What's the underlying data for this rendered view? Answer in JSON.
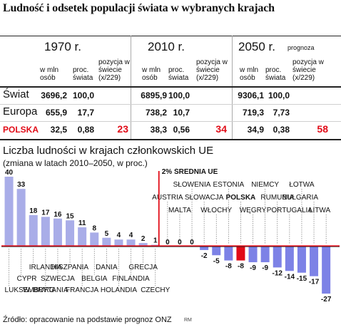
{
  "title": "Ludność i odsetek populacji świata w wybranych krajach",
  "table": {
    "years": [
      "1970 r.",
      "2010 r.",
      "2050 r."
    ],
    "forecast_label": "prognoza",
    "col_headers": [
      "w mln osób",
      "proc. świata",
      "pozycja w świecie (x/229)"
    ],
    "rows": [
      {
        "label": "Świat",
        "v1970": [
          "3696,2",
          "100,0",
          ""
        ],
        "v2010": [
          "6895,9",
          "100,0",
          ""
        ],
        "v2050": [
          "9306,1",
          "100,0",
          ""
        ]
      },
      {
        "label": "Europa",
        "v1970": [
          "655,9",
          "17,7",
          ""
        ],
        "v2010": [
          "738,2",
          "10,7",
          ""
        ],
        "v2050": [
          "719,3",
          "7,73",
          ""
        ]
      },
      {
        "label": "POLSKA",
        "v1970": [
          "32,5",
          "0,88",
          "23"
        ],
        "v2010": [
          "38,3",
          "0,56",
          "34"
        ],
        "v2050": [
          "34,9",
          "0,38",
          "58"
        ]
      }
    ],
    "highlight_color": "#e10b17"
  },
  "chart_data": {
    "type": "bar",
    "title": "Liczba ludności w krajach członkowskich UE",
    "subtitle": "(zmiana w latach 2010–2050, w proc.)",
    "reference_line": {
      "value": 2,
      "label": "2% ŚREDNIA UE"
    },
    "categories": [
      "LUKSEMBURG",
      "CYPR",
      "IRLANDIA",
      "W. BRYTANIA",
      "SZWECJA",
      "HISZPANIA",
      "FRANCJA",
      "BELGIA",
      "DANIA",
      "HOLANDIA",
      "FINLANDIA",
      "GRECJA",
      "CZECHY",
      "AUSTRIA",
      "MALTA",
      "SŁOWENIA",
      "SŁOWACJA",
      "WŁOCHY",
      "ESTONIA",
      "POLSKA",
      "WĘGRY",
      "NIEMCY",
      "RUMUNIA",
      "PORTUGALIA",
      "ŁOTWA",
      "BUŁGARIA",
      "LITWA"
    ],
    "values": [
      40,
      33,
      18,
      17,
      16,
      15,
      11,
      8,
      5,
      4,
      4,
      2,
      1,
      0,
      0,
      0,
      -2,
      -5,
      -8,
      -8,
      -9,
      -9,
      -12,
      -14,
      -15,
      -17,
      -27
    ],
    "value_labels": [
      "40",
      "33",
      "18",
      "17",
      "16",
      "15",
      "11",
      "8",
      "5",
      "4",
      "4",
      "2",
      "1",
      "0",
      "0",
      "0",
      "-2",
      "-5",
      "-8",
      "-8",
      "-9",
      "-9",
      "-12",
      "-14",
      "-15",
      "-17",
      "-27"
    ],
    "highlight": "POLSKA",
    "ylim": [
      -27,
      40
    ],
    "colors": {
      "positive": "#a9ade8",
      "negative": "#7d82e6",
      "highlight": "#e10b17",
      "reference": "#e10b17"
    }
  },
  "source": "Źródło: opracowanie na podstawie prognoz ONZ",
  "credit": "RM"
}
